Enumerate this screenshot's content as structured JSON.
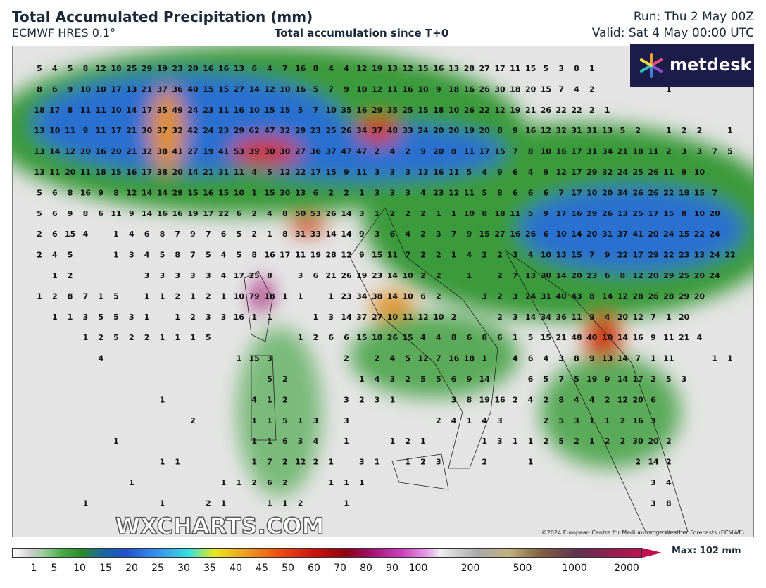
{
  "header": {
    "title": "Total Accumulated Precipitation (mm)",
    "model": "ECMWF HRES 0.1°",
    "subtitle": "Total accumulation since T+0",
    "run": "Run: Thu 2 May 00Z",
    "valid": "Valid: Sat 4 May 00:00 UTC"
  },
  "logo": "metdesk",
  "watermark": "WXCHARTS.COM",
  "copyright": "©2024 European Centre for Medium-range Weather Forecasts (ECMWF)",
  "map": {
    "rows": [
      [
        5,
        4,
        5,
        8,
        12,
        18,
        25,
        29,
        19,
        23,
        20,
        16,
        16,
        13,
        6,
        4,
        7,
        16,
        8,
        4,
        4,
        12,
        19,
        13,
        12,
        15,
        16,
        13,
        28,
        27,
        17,
        11,
        15,
        5,
        3,
        8,
        1
      ],
      [
        8,
        6,
        9,
        10,
        10,
        17,
        13,
        21,
        37,
        36,
        40,
        15,
        15,
        27,
        14,
        12,
        10,
        16,
        5,
        7,
        9,
        10,
        12,
        11,
        16,
        10,
        9,
        18,
        16,
        26,
        30,
        18,
        20,
        15,
        7,
        4,
        2,
        null,
        null,
        null,
        null,
        1
      ],
      [
        18,
        17,
        8,
        11,
        11,
        10,
        14,
        17,
        35,
        49,
        24,
        23,
        11,
        16,
        10,
        15,
        15,
        5,
        7,
        10,
        35,
        16,
        29,
        35,
        25,
        15,
        18,
        10,
        26,
        22,
        12,
        19,
        21,
        26,
        22,
        22,
        2,
        1
      ],
      [
        13,
        10,
        11,
        9,
        11,
        17,
        21,
        30,
        37,
        32,
        42,
        24,
        23,
        29,
        62,
        47,
        32,
        29,
        23,
        25,
        26,
        34,
        37,
        48,
        33,
        24,
        20,
        20,
        19,
        20,
        8,
        9,
        16,
        12,
        32,
        31,
        31,
        13,
        5,
        2,
        null,
        1,
        2,
        2,
        null,
        1
      ],
      [
        13,
        14,
        12,
        20,
        16,
        20,
        21,
        32,
        38,
        41,
        27,
        19,
        41,
        53,
        39,
        30,
        30,
        27,
        36,
        37,
        47,
        47,
        2,
        4,
        2,
        9,
        20,
        8,
        11,
        17,
        15,
        7,
        8,
        10,
        16,
        17,
        31,
        34,
        21,
        18,
        11,
        2,
        3,
        3,
        7,
        5
      ],
      [
        13,
        11,
        20,
        11,
        18,
        15,
        16,
        17,
        38,
        20,
        14,
        21,
        31,
        11,
        4,
        5,
        12,
        22,
        17,
        15,
        9,
        11,
        3,
        3,
        3,
        13,
        16,
        11,
        5,
        4,
        9,
        6,
        4,
        9,
        12,
        17,
        29,
        32,
        24,
        25,
        26,
        11,
        9,
        10
      ],
      [
        5,
        6,
        8,
        16,
        9,
        8,
        12,
        14,
        14,
        29,
        15,
        16,
        15,
        10,
        1,
        15,
        30,
        13,
        6,
        2,
        2,
        1,
        3,
        3,
        3,
        4,
        23,
        12,
        11,
        5,
        8,
        6,
        6,
        6,
        7,
        17,
        10,
        20,
        34,
        26,
        26,
        22,
        18,
        15,
        7
      ],
      [
        5,
        6,
        9,
        8,
        6,
        11,
        9,
        14,
        16,
        16,
        19,
        17,
        22,
        6,
        2,
        4,
        8,
        50,
        53,
        26,
        14,
        3,
        1,
        2,
        2,
        2,
        1,
        1,
        10,
        8,
        18,
        11,
        5,
        9,
        17,
        16,
        29,
        26,
        13,
        25,
        17,
        15,
        8,
        10,
        20
      ],
      [
        2,
        6,
        15,
        4,
        null,
        1,
        4,
        6,
        8,
        7,
        9,
        7,
        6,
        5,
        2,
        1,
        8,
        31,
        33,
        14,
        14,
        9,
        3,
        6,
        4,
        2,
        3,
        7,
        9,
        15,
        27,
        16,
        26,
        6,
        10,
        14,
        20,
        31,
        37,
        41,
        20,
        24,
        15,
        22,
        24
      ],
      [
        2,
        4,
        5,
        null,
        null,
        1,
        3,
        4,
        5,
        8,
        7,
        5,
        4,
        5,
        8,
        16,
        17,
        11,
        19,
        28,
        12,
        9,
        15,
        11,
        7,
        2,
        2,
        1,
        4,
        2,
        2,
        3,
        4,
        10,
        13,
        15,
        7,
        9,
        22,
        17,
        29,
        22,
        23,
        13,
        24,
        22
      ],
      [
        null,
        1,
        2,
        null,
        null,
        null,
        null,
        3,
        3,
        3,
        3,
        3,
        4,
        17,
        25,
        8,
        null,
        3,
        6,
        21,
        26,
        19,
        23,
        14,
        10,
        2,
        2,
        null,
        1,
        null,
        2,
        7,
        13,
        30,
        14,
        20,
        23,
        6,
        8,
        12,
        20,
        29,
        25,
        20,
        24
      ],
      [
        1,
        2,
        8,
        7,
        1,
        5,
        null,
        1,
        1,
        2,
        1,
        2,
        1,
        10,
        79,
        18,
        1,
        1,
        null,
        1,
        23,
        34,
        38,
        14,
        10,
        6,
        2,
        null,
        null,
        3,
        2,
        3,
        24,
        31,
        40,
        43,
        8,
        14,
        12,
        28,
        26,
        28,
        29,
        20
      ],
      [
        null,
        1,
        1,
        3,
        5,
        5,
        3,
        1,
        null,
        1,
        2,
        3,
        3,
        16,
        1,
        1,
        null,
        null,
        1,
        3,
        14,
        37,
        27,
        10,
        11,
        12,
        10,
        2,
        null,
        null,
        2,
        3,
        14,
        34,
        36,
        11,
        9,
        4,
        20,
        12,
        7,
        1,
        20
      ],
      [
        null,
        null,
        null,
        1,
        2,
        5,
        2,
        2,
        1,
        1,
        1,
        5,
        null,
        null,
        null,
        null,
        null,
        1,
        2,
        6,
        6,
        15,
        18,
        26,
        15,
        4,
        4,
        8,
        6,
        8,
        6,
        1,
        5,
        15,
        21,
        48,
        40,
        10,
        14,
        16,
        9,
        11,
        21,
        4
      ],
      [
        null,
        null,
        null,
        null,
        4,
        null,
        null,
        null,
        null,
        null,
        null,
        null,
        null,
        1,
        15,
        3,
        null,
        null,
        null,
        null,
        2,
        null,
        2,
        4,
        5,
        12,
        7,
        16,
        18,
        1,
        null,
        4,
        6,
        4,
        3,
        8,
        9,
        13,
        14,
        7,
        1,
        11,
        null,
        null,
        1,
        1
      ],
      [
        null,
        null,
        null,
        null,
        null,
        null,
        null,
        null,
        null,
        null,
        null,
        null,
        null,
        null,
        null,
        5,
        2,
        null,
        null,
        null,
        null,
        1,
        4,
        3,
        2,
        5,
        5,
        6,
        9,
        14,
        null,
        null,
        6,
        5,
        7,
        5,
        19,
        9,
        14,
        17,
        2,
        5,
        3
      ],
      [
        null,
        null,
        null,
        null,
        null,
        null,
        null,
        null,
        1,
        null,
        null,
        null,
        null,
        null,
        4,
        1,
        2,
        null,
        null,
        null,
        3,
        2,
        3,
        1,
        null,
        null,
        null,
        3,
        8,
        19,
        16,
        2,
        4,
        2,
        8,
        4,
        4,
        2,
        12,
        20,
        6
      ],
      [
        null,
        null,
        null,
        null,
        null,
        null,
        null,
        null,
        null,
        null,
        2,
        null,
        null,
        null,
        1,
        1,
        5,
        1,
        3,
        null,
        3,
        null,
        null,
        null,
        null,
        null,
        2,
        4,
        1,
        4,
        3,
        null,
        null,
        2,
        5,
        3,
        1,
        1,
        2,
        16,
        3
      ],
      [
        null,
        null,
        null,
        null,
        null,
        1,
        null,
        null,
        null,
        null,
        null,
        null,
        null,
        null,
        1,
        1,
        6,
        3,
        4,
        null,
        1,
        null,
        null,
        1,
        2,
        1,
        null,
        null,
        null,
        1,
        3,
        1,
        1,
        2,
        5,
        2,
        1,
        2,
        2,
        30,
        20,
        2
      ],
      [
        null,
        null,
        null,
        null,
        null,
        null,
        null,
        null,
        1,
        1,
        null,
        null,
        null,
        null,
        1,
        7,
        2,
        12,
        2,
        1,
        null,
        3,
        1,
        null,
        1,
        2,
        3,
        null,
        null,
        2,
        null,
        null,
        1,
        null,
        null,
        null,
        null,
        null,
        null,
        2,
        14,
        2
      ],
      [
        null,
        null,
        null,
        null,
        null,
        null,
        1,
        null,
        null,
        null,
        null,
        null,
        1,
        1,
        2,
        6,
        2,
        null,
        null,
        1,
        1,
        1,
        null,
        null,
        null,
        null,
        null,
        null,
        null,
        null,
        null,
        null,
        null,
        null,
        null,
        null,
        null,
        null,
        null,
        null,
        3,
        4
      ],
      [
        null,
        null,
        null,
        1,
        null,
        null,
        null,
        null,
        1,
        null,
        null,
        2,
        1,
        null,
        null,
        1,
        1,
        2,
        null,
        null,
        1,
        null,
        null,
        null,
        null,
        null,
        null,
        null,
        null,
        null,
        null,
        null,
        null,
        null,
        null,
        null,
        null,
        null,
        null,
        null,
        3,
        8
      ]
    ]
  },
  "colorbar": {
    "ticks": [
      1,
      5,
      10,
      15,
      20,
      25,
      30,
      35,
      40,
      45,
      50,
      60,
      70,
      80,
      90,
      100,
      200,
      500,
      1000,
      2000
    ],
    "max_label": "Max: 102 mm"
  }
}
